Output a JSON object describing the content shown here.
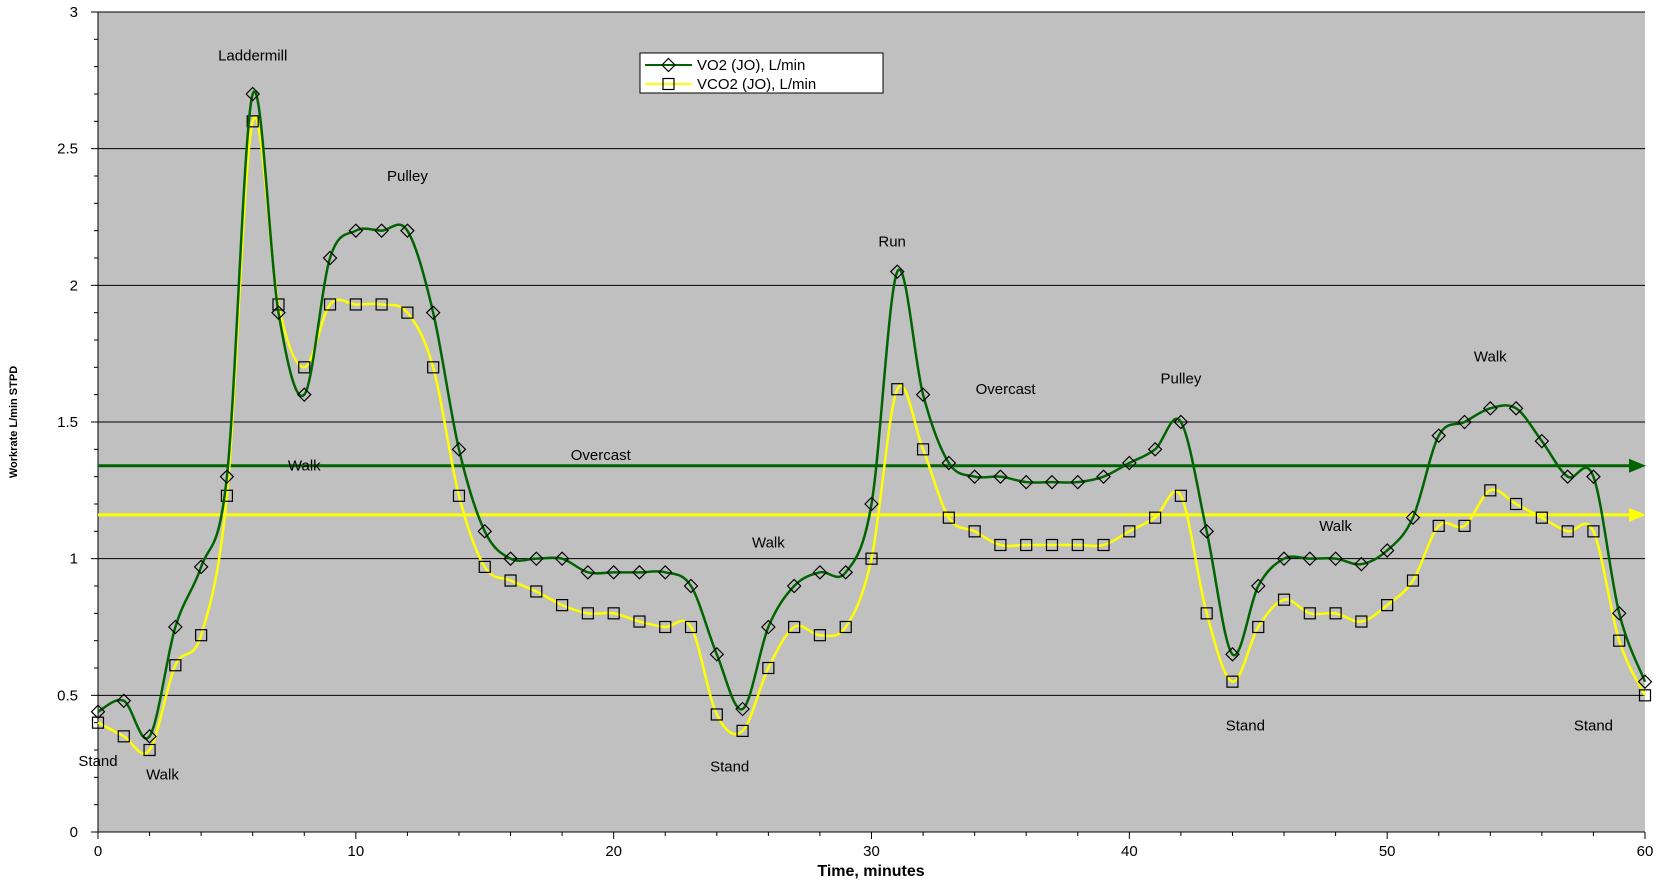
{
  "chart_data": {
    "type": "line",
    "xlabel": "Time, minutes",
    "ylabel": "Workrate L/min STPD",
    "xlim": [
      0,
      60
    ],
    "ylim": [
      0,
      3
    ],
    "x_ticks": [
      0,
      10,
      20,
      30,
      40,
      50,
      60
    ],
    "y_ticks": [
      0,
      0.5,
      1,
      1.5,
      2,
      2.5,
      3
    ],
    "y_tick_labels": [
      "0",
      "0.5",
      "1",
      "1.5",
      "2",
      "2.5",
      "3"
    ],
    "grid": "horizontal",
    "plot_background": "#c0c0c0",
    "legend_position": "top-center",
    "x": [
      0,
      1,
      2,
      3,
      4,
      5,
      6,
      7,
      8,
      9,
      10,
      11,
      12,
      13,
      14,
      15,
      16,
      17,
      18,
      19,
      20,
      21,
      22,
      23,
      24,
      25,
      26,
      27,
      28,
      29,
      30,
      31,
      32,
      33,
      34,
      35,
      36,
      37,
      38,
      39,
      40,
      41,
      42,
      43,
      44,
      45,
      46,
      47,
      48,
      49,
      50,
      51,
      52,
      53,
      54,
      55,
      56,
      57,
      58,
      59,
      60
    ],
    "series": [
      {
        "name": "VO2 (JO), L/min",
        "color": "#006400",
        "marker": "diamond",
        "values": [
          0.44,
          0.48,
          0.35,
          0.75,
          0.97,
          1.3,
          2.7,
          1.9,
          1.6,
          2.1,
          2.2,
          2.2,
          2.2,
          1.9,
          1.4,
          1.1,
          1.0,
          1.0,
          1.0,
          0.95,
          0.95,
          0.95,
          0.95,
          0.9,
          0.65,
          0.45,
          0.75,
          0.9,
          0.95,
          0.95,
          1.2,
          2.05,
          1.6,
          1.35,
          1.3,
          1.3,
          1.28,
          1.28,
          1.28,
          1.3,
          1.35,
          1.4,
          1.5,
          1.1,
          0.65,
          0.9,
          1.0,
          1.0,
          1.0,
          0.98,
          1.03,
          1.15,
          1.45,
          1.5,
          1.55,
          1.55,
          1.43,
          1.3,
          1.3,
          0.8,
          0.55
        ]
      },
      {
        "name": "VCO2 (JO), L/min",
        "color": "#ffff00",
        "marker": "square",
        "values": [
          0.4,
          0.35,
          0.3,
          0.61,
          0.72,
          1.23,
          2.6,
          1.93,
          1.7,
          1.93,
          1.93,
          1.93,
          1.9,
          1.7,
          1.23,
          0.97,
          0.92,
          0.88,
          0.83,
          0.8,
          0.8,
          0.77,
          0.75,
          0.75,
          0.43,
          0.37,
          0.6,
          0.75,
          0.72,
          0.75,
          1.0,
          1.62,
          1.4,
          1.15,
          1.1,
          1.05,
          1.05,
          1.05,
          1.05,
          1.05,
          1.1,
          1.15,
          1.23,
          0.8,
          0.55,
          0.75,
          0.85,
          0.8,
          0.8,
          0.77,
          0.83,
          0.92,
          1.12,
          1.12,
          1.25,
          1.2,
          1.15,
          1.1,
          1.1,
          0.7,
          0.5
        ]
      }
    ],
    "reference_lines": [
      {
        "value": 1.34,
        "color": "#006400"
      },
      {
        "value": 1.16,
        "color": "#ffff00"
      }
    ],
    "annotations": [
      {
        "text": "Laddermill",
        "x": 6,
        "y": 2.84
      },
      {
        "text": "Pulley",
        "x": 12,
        "y": 2.4
      },
      {
        "text": "Walk",
        "x": 8,
        "y": 1.34
      },
      {
        "text": "Overcast",
        "x": 19.5,
        "y": 1.38
      },
      {
        "text": "Stand",
        "x": 0,
        "y": 0.26
      },
      {
        "text": "Walk",
        "x": 2.5,
        "y": 0.21
      },
      {
        "text": "Walk",
        "x": 26,
        "y": 1.06
      },
      {
        "text": "Stand",
        "x": 24.5,
        "y": 0.24
      },
      {
        "text": "Run",
        "x": 30.8,
        "y": 2.16
      },
      {
        "text": "Overcast",
        "x": 35.2,
        "y": 1.62
      },
      {
        "text": "Pulley",
        "x": 42,
        "y": 1.66
      },
      {
        "text": "Walk",
        "x": 48,
        "y": 1.12
      },
      {
        "text": "Stand",
        "x": 44.5,
        "y": 0.39
      },
      {
        "text": "Walk",
        "x": 54,
        "y": 1.74
      },
      {
        "text": "Stand",
        "x": 58,
        "y": 0.39
      }
    ]
  }
}
